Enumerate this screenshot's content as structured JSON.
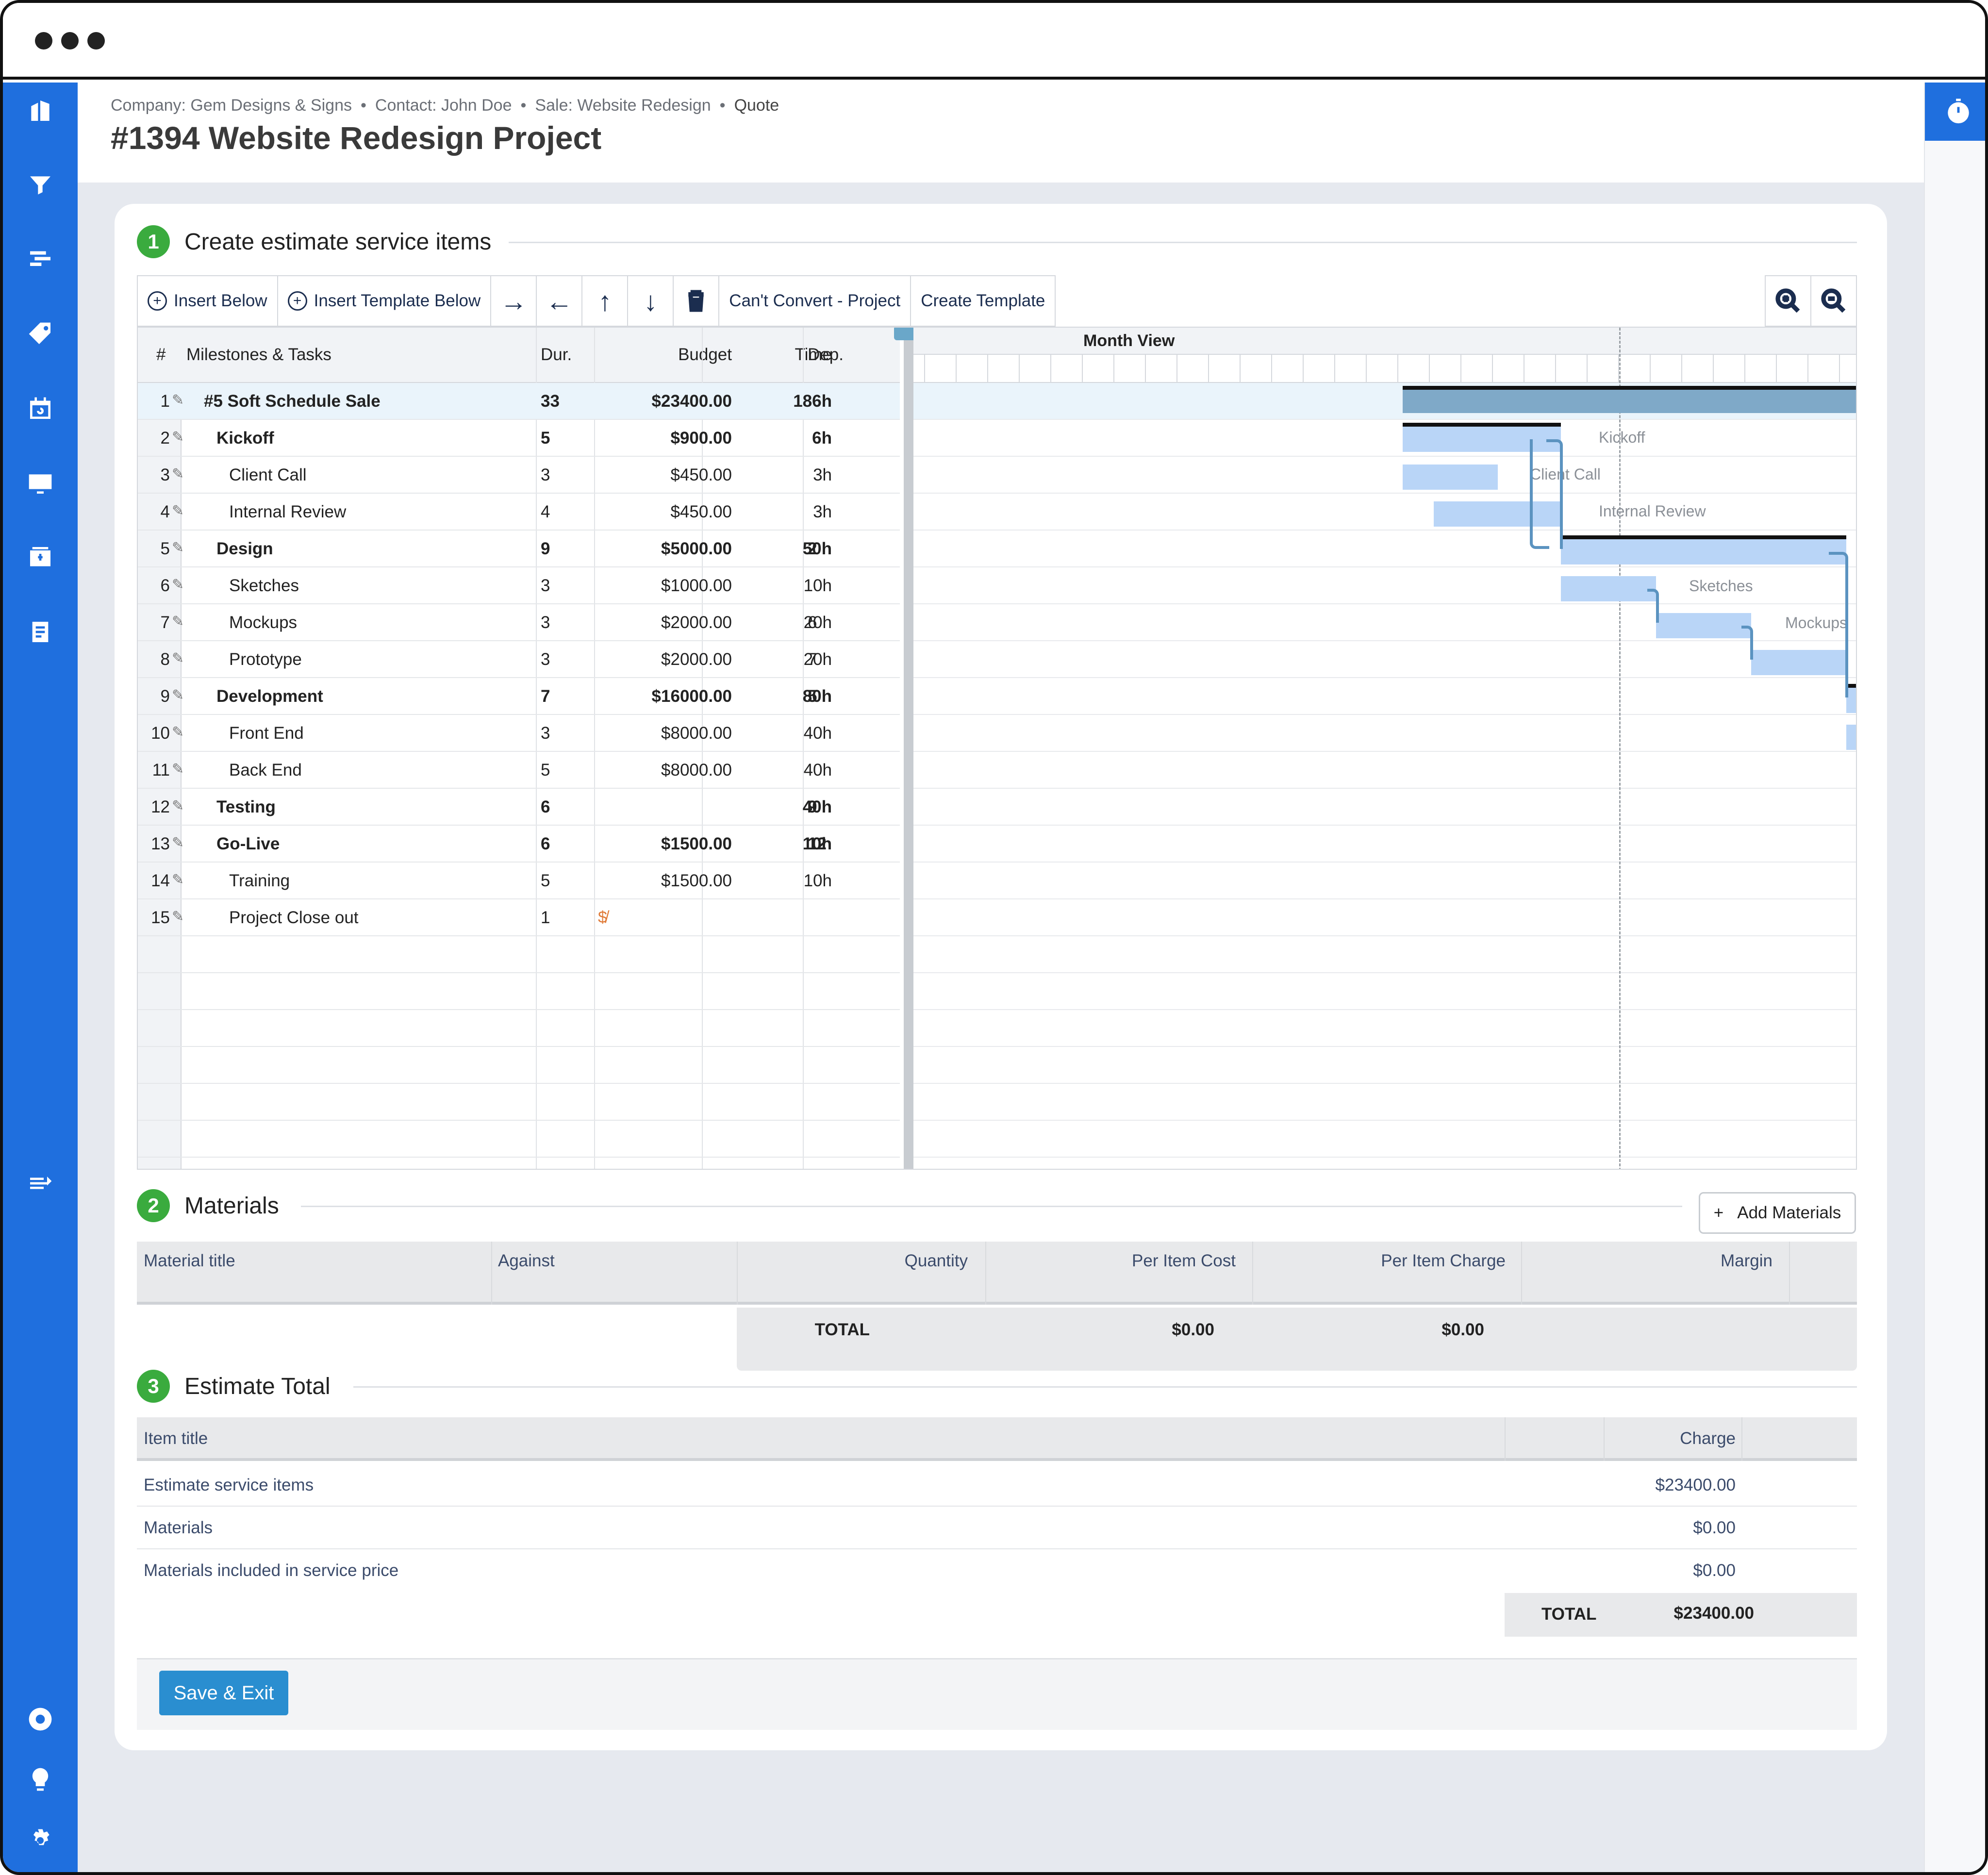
{
  "breadcrumb": {
    "company": "Company: Gem Designs & Signs",
    "contact": "Contact: John Doe",
    "sale": "Sale:  Website Redesign",
    "quote": "Quote",
    "separator": "•"
  },
  "page_title": "#1394 Website Redesign Project",
  "sections": {
    "one": {
      "num": "1",
      "title": "Create estimate service items"
    },
    "two": {
      "num": "2",
      "title": "Materials"
    },
    "three": {
      "num": "3",
      "title": "Estimate Total"
    }
  },
  "toolbar": {
    "insert_below": "Insert Below",
    "insert_template_below": "Insert Template Below",
    "cant_convert": "Can't Convert - Project",
    "create_template": "Create Template",
    "plus_glyph": "+",
    "indent_glyph": "→",
    "outdent_glyph": "←",
    "up_glyph": "↑",
    "down_glyph": "↓"
  },
  "grid": {
    "headers": {
      "num": "#",
      "task": "Milestones & Tasks",
      "dur": "Dur.",
      "budget": "Budget",
      "time": "Time",
      "dep": "Dep."
    },
    "rows": [
      {
        "n": "1",
        "task": "#5 Soft Schedule Sale",
        "dur": "33",
        "budget": "$23400.00",
        "time": "186h",
        "dep": "",
        "level": 0,
        "bold": true
      },
      {
        "n": "2",
        "task": "Kickoff",
        "dur": "5",
        "budget": "$900.00",
        "time": "6h",
        "dep": "",
        "level": 1,
        "bold": true
      },
      {
        "n": "3",
        "task": "Client Call",
        "dur": "3",
        "budget": "$450.00",
        "time": "3h",
        "dep": "",
        "level": 2,
        "bold": false
      },
      {
        "n": "4",
        "task": "Internal Review",
        "dur": "4",
        "budget": "$450.00",
        "time": "3h",
        "dep": "",
        "level": 2,
        "bold": false
      },
      {
        "n": "5",
        "task": "Design",
        "dur": "9",
        "budget": "$5000.00",
        "time": "50h",
        "dep": "2",
        "level": 1,
        "bold": true
      },
      {
        "n": "6",
        "task": "Sketches",
        "dur": "3",
        "budget": "$1000.00",
        "time": "10h",
        "dep": "",
        "level": 2,
        "bold": false
      },
      {
        "n": "7",
        "task": "Mockups",
        "dur": "3",
        "budget": "$2000.00",
        "time": "20h",
        "dep": "6",
        "level": 2,
        "bold": false
      },
      {
        "n": "8",
        "task": "Prototype",
        "dur": "3",
        "budget": "$2000.00",
        "time": "20h",
        "dep": "7",
        "level": 2,
        "bold": false
      },
      {
        "n": "9",
        "task": "Development",
        "dur": "7",
        "budget": "$16000.00",
        "time": "80h",
        "dep": "5",
        "level": 1,
        "bold": true
      },
      {
        "n": "10",
        "task": "Front End",
        "dur": "3",
        "budget": "$8000.00",
        "time": "40h",
        "dep": "",
        "level": 2,
        "bold": false
      },
      {
        "n": "11",
        "task": "Back End",
        "dur": "5",
        "budget": "$8000.00",
        "time": "40h",
        "dep": "",
        "level": 2,
        "bold": false
      },
      {
        "n": "12",
        "task": "Testing",
        "dur": "6",
        "budget": "",
        "time": "40h",
        "dep": "9",
        "level": 1,
        "bold": true
      },
      {
        "n": "13",
        "task": "Go-Live",
        "dur": "6",
        "budget": "$1500.00",
        "time": "10h",
        "dep": "12",
        "level": 1,
        "bold": true
      },
      {
        "n": "14",
        "task": "Training",
        "dur": "5",
        "budget": "$1500.00",
        "time": "10h",
        "dep": "",
        "level": 2,
        "bold": false
      },
      {
        "n": "15",
        "task": "Project Close out",
        "dur": "1",
        "budget": "",
        "time": "",
        "dep": "",
        "level": 2,
        "bold": false,
        "budget_icon": true
      }
    ]
  },
  "gantt": {
    "view_label": "Month View",
    "labels": {
      "kickoff": "Kickoff",
      "client_call": "Client Call",
      "internal_review": "Internal Review",
      "sketches": "Sketches",
      "mockups": "Mockups"
    }
  },
  "materials": {
    "add_button": "Add Materials",
    "add_glyph": "+",
    "headers": {
      "title": "Material title",
      "against": "Against",
      "quantity": "Quantity",
      "per_item_cost": "Per Item Cost",
      "per_item_charge": "Per Item Charge",
      "margin": "Margin"
    },
    "total_label": "TOTAL",
    "total_cost": "$0.00",
    "total_charge": "$0.00"
  },
  "estimate_total": {
    "headers": {
      "title": "Item title",
      "charge": "Charge"
    },
    "rows": [
      {
        "title": "Estimate service items",
        "charge": "$23400.00"
      },
      {
        "title": "Materials",
        "charge": "$0.00"
      },
      {
        "title": "Materials included in service price",
        "charge": "$0.00"
      }
    ],
    "total_label": "TOTAL",
    "total_value": "$23400.00"
  },
  "footer": {
    "save_exit": "Save & Exit"
  },
  "colors": {
    "accent": "#1f6fde",
    "step_badge": "#3aab3e",
    "save_button": "#2a8ed0",
    "gantt_bar": "#b9d5f7",
    "gantt_summary": "#7fa9c8"
  }
}
